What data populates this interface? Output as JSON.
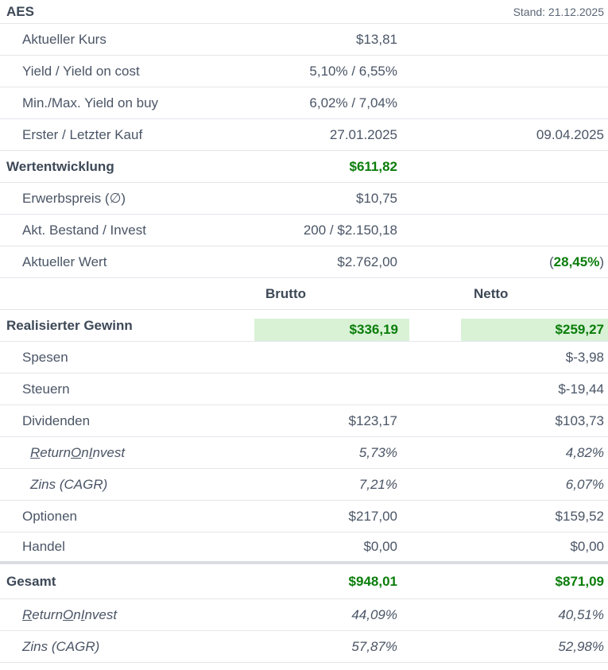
{
  "header": {
    "ticker": "AES",
    "stand": "Stand: 21.12.2025"
  },
  "overview": [
    {
      "label": "Aktueller Kurs",
      "value": "$13,81"
    },
    {
      "label": "Yield / Yield on cost",
      "value": "5,10% / 6,55%"
    },
    {
      "label": "Min./Max. Yield on buy",
      "value": "6,02% / 7,04%"
    },
    {
      "label": "Erster / Letzter Kauf",
      "value": "27.01.2025",
      "value2": "09.04.2025"
    }
  ],
  "wertentwicklung": {
    "label": "Wertentwicklung",
    "value": "$611,82"
  },
  "position": [
    {
      "label": "Erwerbspreis (∅)",
      "value": "$10,75"
    },
    {
      "label": "Akt. Bestand / Invest",
      "value": "200 / $2.150,18"
    },
    {
      "label": "Aktueller Wert",
      "value": "$2.762,00",
      "pct_open": "(",
      "pct": "28,45%",
      "pct_close": ")"
    }
  ],
  "columns": {
    "brutto": "Brutto",
    "netto": "Netto"
  },
  "realisiert": {
    "label": "Realisierter Gewinn",
    "brutto": "$336,19",
    "netto": "$259,27"
  },
  "details": [
    {
      "label": "Spesen",
      "brutto": "",
      "netto": "$-3,98"
    },
    {
      "label": "Steuern",
      "brutto": "",
      "netto": "$-19,44"
    },
    {
      "label": "Dividenden",
      "brutto": "$123,17",
      "netto": "$103,73"
    },
    {
      "label_parts": [
        "R",
        "eturn ",
        "O",
        "n ",
        "I",
        "nvest"
      ],
      "brutto": "5,73%",
      "netto": "4,82%"
    },
    {
      "label": "Zins (CAGR)",
      "brutto": "7,21%",
      "netto": "6,07%"
    },
    {
      "label": "Optionen",
      "brutto": "$217,00",
      "netto": "$159,52"
    },
    {
      "label": "Handel",
      "brutto": "$0,00",
      "netto": "$0,00"
    }
  ],
  "gesamt": {
    "label": "Gesamt",
    "brutto": "$948,01",
    "netto": "$871,09"
  },
  "gesamt_details": [
    {
      "label_parts": [
        "R",
        "eturn ",
        "O",
        "n ",
        "I",
        "nvest"
      ],
      "brutto": "44,09%",
      "netto": "40,51%"
    },
    {
      "label": "Zins (CAGR)",
      "brutto": "57,87%",
      "netto": "52,98%"
    }
  ]
}
